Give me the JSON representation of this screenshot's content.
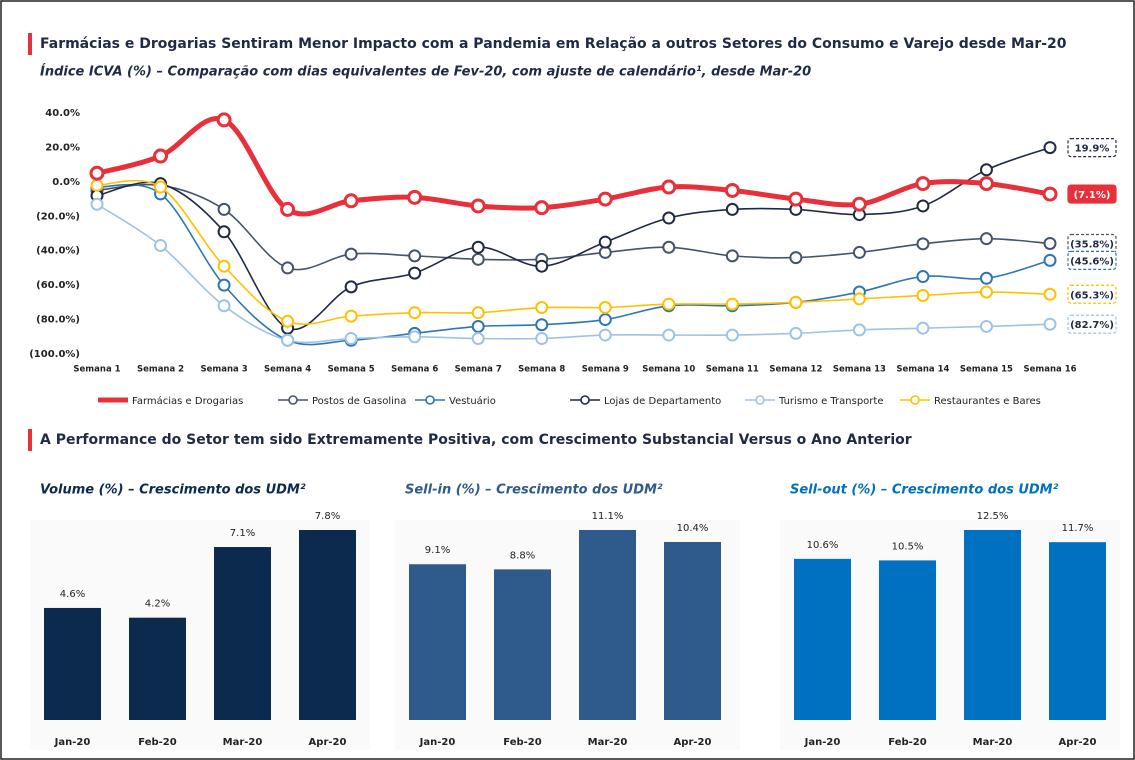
{
  "chart_data": [
    {
      "type": "line",
      "title": "Farmácias e Drogarias Sentiram Menor Impacto com a Pandemia em Relação a outros Setores do Consumo e Varejo desde Mar-20",
      "subtitle": "Índice ICVA (%) – Comparação com dias equivalentes de Fev-20, com ajuste de calendário¹, desde Mar-20",
      "categories": [
        "Semana 1",
        "Semana 2",
        "Semana 3",
        "Semana 4",
        "Semana 5",
        "Semana 6",
        "Semana 7",
        "Semana 8",
        "Semana 9",
        "Semana 10",
        "Semana 11",
        "Semana 12",
        "Semana 13",
        "Semana 14",
        "Semana 15",
        "Semana 16"
      ],
      "ylim": [
        -100,
        40
      ],
      "yticks": [
        {
          "value": 40,
          "label": "40.0%"
        },
        {
          "value": 20,
          "label": "20.0%"
        },
        {
          "value": 0,
          "label": "0.0%"
        },
        {
          "value": -20,
          "label": "(20.0%)"
        },
        {
          "value": -40,
          "label": "(40.0%)"
        },
        {
          "value": -60,
          "label": "(60.0%)"
        },
        {
          "value": -80,
          "label": "(80.0%)"
        },
        {
          "value": -100,
          "label": "(100.0%)"
        }
      ],
      "legend": "bottom",
      "series": [
        {
          "name": "Farmácias e Drogarias",
          "color": "#e8303a",
          "values": [
            5,
            15,
            36,
            -16,
            -11,
            -9,
            -14,
            -15,
            -10,
            -3,
            -5,
            -10,
            -13,
            -1,
            -1,
            -7.1
          ],
          "end_label": "(7.1%)"
        },
        {
          "name": "Postos de Gasolina",
          "color": "#44546a",
          "values": [
            -5,
            -2,
            -16,
            -50,
            -42,
            -43,
            -45,
            -45,
            -41,
            -38,
            -43,
            -44,
            -41,
            -36,
            -33,
            -35.8
          ],
          "end_label": "(35.8%)"
        },
        {
          "name": "Vestuário",
          "color": "#2e75b6",
          "values": [
            -3,
            -7,
            -60,
            -92,
            -92,
            -88,
            -84,
            -83,
            -80,
            -72,
            -72,
            -70,
            -64,
            -55,
            -56,
            -45.6
          ],
          "end_label": "(45.6%)"
        },
        {
          "name": "Lojas de Departamento",
          "color": "#1f2a44",
          "values": [
            -8,
            -1,
            -29,
            -85,
            -61,
            -53,
            -38,
            -49,
            -35,
            -21,
            -16,
            -16,
            -19,
            -14,
            7,
            19.9
          ],
          "end_label": "19.9%"
        },
        {
          "name": "Turismo e Transporte",
          "color": "#9dc3e6",
          "values": [
            -13,
            -37,
            -72,
            -92,
            -91,
            -90,
            -91,
            -91,
            -89,
            -89,
            -89,
            -88,
            -86,
            -85,
            -84,
            -82.7
          ],
          "end_label": "(82.7%)"
        },
        {
          "name": "Restaurantes e Bares",
          "color": "#ffc000",
          "values": [
            -2,
            -3,
            -49,
            -81,
            -78,
            -76,
            -76,
            -73,
            -73,
            -71,
            -71,
            -70,
            -68,
            -66,
            -64,
            -65.3
          ],
          "end_label": "(65.3%)"
        }
      ]
    },
    {
      "type": "bar",
      "title": "Volume (%) – Crescimento dos UDM²",
      "color": "#0b2a4d",
      "categories": [
        "Jan-20",
        "Feb-20",
        "Mar-20",
        "Apr-20"
      ],
      "values": [
        4.6,
        4.2,
        7.1,
        7.8
      ],
      "value_labels": [
        "4.6%",
        "4.2%",
        "7.1%",
        "7.8%"
      ]
    },
    {
      "type": "bar",
      "title": "Sell-in (%) – Crescimento dos UDM²",
      "color": "#2f5a8c",
      "categories": [
        "Jan-20",
        "Feb-20",
        "Mar-20",
        "Apr-20"
      ],
      "values": [
        9.1,
        8.8,
        11.1,
        10.4
      ],
      "value_labels": [
        "9.1%",
        "8.8%",
        "11.1%",
        "10.4%"
      ]
    },
    {
      "type": "bar",
      "title": "Sell-out (%) – Crescimento dos UDM²",
      "color": "#0070c0",
      "categories": [
        "Jan-20",
        "Feb-20",
        "Mar-20",
        "Apr-20"
      ],
      "values": [
        10.6,
        10.5,
        12.5,
        11.7
      ],
      "value_labels": [
        "10.6%",
        "10.5%",
        "12.5%",
        "11.7%"
      ]
    }
  ],
  "section_title": "A Performance do Setor tem sido Extremamente Positiva, com Crescimento Substancial Versus o Ano Anterior"
}
